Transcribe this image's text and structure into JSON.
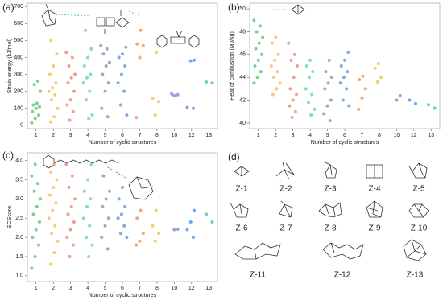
{
  "chart_data": [
    {
      "type": "strip",
      "panel": "(a)",
      "x_label": "Number of cyclic structures",
      "y_label": "Strain energy (kJ/mol)",
      "categories": [
        "1",
        "2",
        "3",
        "4",
        "5",
        "6",
        "7",
        "8",
        "10",
        "12",
        "13"
      ],
      "colors": [
        "#4cc36a",
        "#f5b84a",
        "#f07c6c",
        "#5ecdb8",
        "#8a86b4",
        "#5a8fd6",
        "#f08a3c",
        "#e9c03a",
        "#7b7fd0",
        "#3f8de0",
        "#3fbf9a"
      ],
      "ylim": [
        -20,
        720
      ],
      "yticks": [
        0,
        100,
        200,
        300,
        400,
        500,
        600,
        700
      ],
      "values": [
        [
          15,
          40,
          60,
          80,
          100,
          110,
          120,
          130,
          200,
          240,
          260
        ],
        [
          20,
          50,
          100,
          150,
          180,
          200,
          220,
          250,
          300,
          350,
          420,
          500
        ],
        [
          30,
          80,
          120,
          150,
          200,
          250,
          280,
          300,
          350,
          400,
          430
        ],
        [
          40,
          60,
          150,
          200,
          250,
          280,
          300,
          350,
          400,
          450,
          560
        ],
        [
          50,
          100,
          200,
          250,
          300,
          350,
          370,
          420,
          450,
          470
        ],
        [
          60,
          120,
          200,
          250,
          300,
          350,
          400,
          420,
          460
        ],
        [
          45,
          400,
          470,
          480,
          560
        ],
        [
          60,
          140,
          160,
          430
        ],
        [
          175,
          180,
          185
        ],
        [
          100,
          105,
          380,
          385
        ],
        [
          250,
          255
        ]
      ]
    },
    {
      "type": "strip",
      "panel": "(b)",
      "x_label": "Number of cyclic structures",
      "y_label": "Heat of combustion (MJ/kg)",
      "categories": [
        "1",
        "2",
        "3",
        "4",
        "5",
        "6",
        "7",
        "8",
        "10",
        "12",
        "13"
      ],
      "colors": [
        "#4cc36a",
        "#f5b84a",
        "#f07c6c",
        "#5ecdb8",
        "#8a86b4",
        "#5a8fd6",
        "#f08a3c",
        "#e9c03a",
        "#7b7fd0",
        "#3f8de0",
        "#3fbf9a"
      ],
      "ylim": [
        39.5,
        50.5
      ],
      "yticks": [
        40,
        42,
        44,
        46,
        48,
        50
      ],
      "values": [
        [
          43.5,
          44,
          44.5,
          45,
          45.5,
          46,
          46.5,
          47,
          47.5,
          48,
          48.5,
          49
        ],
        [
          42.5,
          43,
          43.5,
          44,
          44.5,
          45,
          45.5,
          46,
          47,
          47.5
        ],
        [
          40.5,
          41,
          41.5,
          42,
          42.5,
          43,
          44,
          45,
          45.5,
          46,
          47
        ],
        [
          40.7,
          41.2,
          41.8,
          42.5,
          43,
          44,
          44.5,
          45,
          45.5
        ],
        [
          40.2,
          40.8,
          41.5,
          42,
          43,
          43.5,
          44,
          44.5,
          45.5
        ],
        [
          41.5,
          42,
          43,
          43.5,
          44,
          44.5,
          45,
          45.5,
          46.2
        ],
        [
          41.2,
          42.2,
          43,
          43.8,
          44.1
        ],
        [
          43.6,
          44,
          44.8,
          45.2
        ],
        [
          42,
          42.4
        ],
        [
          41.7,
          42
        ],
        [
          41.3,
          41.6
        ]
      ]
    },
    {
      "type": "strip",
      "panel": "(c)",
      "x_label": "Number of cyclic structures",
      "y_label": "SCScore",
      "categories": [
        "1",
        "2",
        "3",
        "4",
        "5",
        "6",
        "7",
        "8",
        "10",
        "12",
        "13"
      ],
      "colors": [
        "#4cc36a",
        "#f5b84a",
        "#f07c6c",
        "#5ecdb8",
        "#8a86b4",
        "#5a8fd6",
        "#f08a3c",
        "#e9c03a",
        "#7b7fd0",
        "#3f8de0",
        "#3fbf9a"
      ],
      "ylim": [
        0.85,
        4.2
      ],
      "yticks": [
        {
          "value": 1,
          "label": "1.0"
        },
        {
          "value": 1.5,
          "label": "1.5"
        },
        {
          "value": 2,
          "label": "2.0"
        },
        {
          "value": 2.5,
          "label": "2.5"
        },
        {
          "value": 3,
          "label": "3.0"
        },
        {
          "value": 3.5,
          "label": "3.5"
        },
        {
          "value": 4,
          "label": "4.0"
        }
      ],
      "values": [
        [
          1.2,
          1.5,
          1.8,
          2.0,
          2.2,
          2.4,
          2.6,
          2.8,
          3.0,
          3.2,
          3.4,
          3.6,
          3.9
        ],
        [
          1.3,
          1.6,
          1.9,
          2.1,
          2.3,
          2.5,
          2.7,
          2.9,
          3.1,
          3.3,
          3.5,
          3.7,
          3.9
        ],
        [
          1.5,
          1.8,
          2.0,
          2.2,
          2.4,
          2.6,
          2.8,
          3.0,
          3.3,
          3.6,
          3.9
        ],
        [
          1.5,
          1.8,
          2.0,
          2.3,
          2.5,
          2.8,
          3.0,
          3.2,
          3.5,
          3.9
        ],
        [
          1.7,
          2.0,
          2.3,
          2.5,
          2.8,
          3.0,
          3.2,
          3.6
        ],
        [
          2.0,
          2.1,
          2.3,
          2.5,
          2.6,
          2.8,
          3.0,
          3.3
        ],
        [
          1.8,
          1.9,
          2.1,
          2.5,
          2.7
        ],
        [
          1.9,
          2.1,
          2.3,
          2.7
        ],
        [
          2.2,
          2.21
        ],
        [
          2.0,
          2.2,
          2.4,
          2.7
        ],
        [
          2.4,
          2.6
        ]
      ]
    }
  ],
  "panel_d": {
    "panel": "(d)",
    "structures": [
      "Z-1",
      "Z-2",
      "Z-3",
      "Z-4",
      "Z-5",
      "Z-6",
      "Z-7",
      "Z-8",
      "Z-9",
      "Z-10",
      "Z-11",
      "Z-12",
      "Z-13"
    ]
  }
}
